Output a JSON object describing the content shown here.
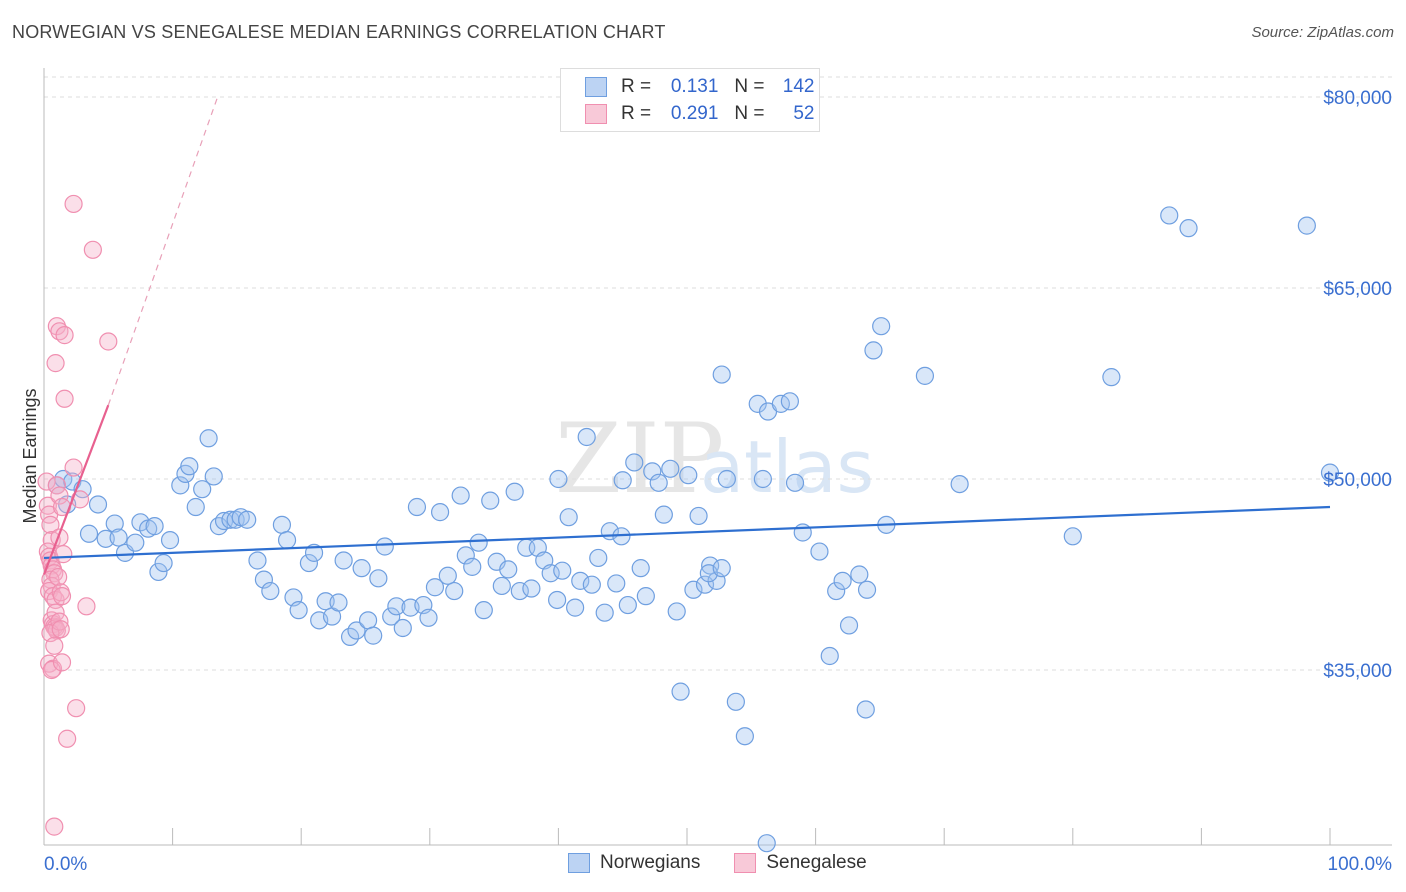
{
  "title": "NORWEGIAN VS SENEGALESE MEDIAN EARNINGS CORRELATION CHART",
  "source": "Source: ZipAtlas.com",
  "legend": {
    "rows": [
      {
        "r_label": "R =",
        "r_value": "0.131",
        "n_label": "N =",
        "n_value": "142"
      },
      {
        "r_label": "R =",
        "r_value": "0.291",
        "n_label": "N =",
        "n_value": "52"
      }
    ]
  },
  "bottom_legend": [
    "Norwegians",
    "Senegalese"
  ],
  "watermark": {
    "zip": "ZIP",
    "atlas": "atlas"
  },
  "colors": {
    "norwegians": "#6f9fe0",
    "senegalese": "#f08fb0",
    "norwegians_line": "#2e6fd0",
    "senegalese_line": "#e8608f",
    "axis_text": "#3a6fd0"
  },
  "chart_data": {
    "type": "scatter",
    "title": "NORWEGIAN VS SENEGALESE MEDIAN EARNINGS CORRELATION CHART",
    "xlabel": "",
    "ylabel": "Median Earnings",
    "xlim": [
      0,
      100
    ],
    "ylim": [
      21000,
      82000
    ],
    "x_tick_labels": [
      "0.0%",
      "100.0%"
    ],
    "y_ticks": [
      35000,
      50000,
      65000,
      80000
    ],
    "y_tick_labels": [
      "$35,000",
      "$50,000",
      "$65,000",
      "$80,000"
    ],
    "series": [
      {
        "name": "Norwegians",
        "R": 0.131,
        "N": 142,
        "trend": {
          "x": [
            0,
            100
          ],
          "y": [
            43800,
            47800
          ]
        },
        "points": [
          [
            1.0,
            49500
          ],
          [
            1.5,
            50000
          ],
          [
            1.8,
            48000
          ],
          [
            2.2,
            49800
          ],
          [
            3.0,
            49200
          ],
          [
            3.5,
            45700
          ],
          [
            4.2,
            48000
          ],
          [
            4.8,
            45300
          ],
          [
            5.5,
            46500
          ],
          [
            5.8,
            45400
          ],
          [
            6.3,
            44200
          ],
          [
            7.1,
            45000
          ],
          [
            7.5,
            46600
          ],
          [
            8.1,
            46100
          ],
          [
            8.6,
            46300
          ],
          [
            8.9,
            42700
          ],
          [
            9.3,
            43400
          ],
          [
            9.8,
            45200
          ],
          [
            10.6,
            49500
          ],
          [
            11.0,
            50400
          ],
          [
            11.3,
            51000
          ],
          [
            11.8,
            47800
          ],
          [
            12.3,
            49200
          ],
          [
            12.8,
            53200
          ],
          [
            13.2,
            50200
          ],
          [
            13.6,
            46300
          ],
          [
            14.0,
            46700
          ],
          [
            14.5,
            46800
          ],
          [
            14.9,
            46800
          ],
          [
            15.3,
            47000
          ],
          [
            15.8,
            46800
          ],
          [
            16.6,
            43600
          ],
          [
            17.1,
            42100
          ],
          [
            17.6,
            41200
          ],
          [
            18.5,
            46400
          ],
          [
            18.9,
            45200
          ],
          [
            19.4,
            40700
          ],
          [
            19.8,
            39700
          ],
          [
            20.6,
            43400
          ],
          [
            21.0,
            44200
          ],
          [
            21.4,
            38900
          ],
          [
            21.9,
            40400
          ],
          [
            22.4,
            39200
          ],
          [
            22.9,
            40300
          ],
          [
            23.3,
            43600
          ],
          [
            23.8,
            37600
          ],
          [
            24.3,
            38100
          ],
          [
            24.7,
            43000
          ],
          [
            25.2,
            38900
          ],
          [
            25.6,
            37700
          ],
          [
            26.0,
            42200
          ],
          [
            26.5,
            44700
          ],
          [
            27.0,
            39200
          ],
          [
            27.4,
            40000
          ],
          [
            27.9,
            38300
          ],
          [
            28.5,
            39900
          ],
          [
            29.0,
            47800
          ],
          [
            29.5,
            40100
          ],
          [
            29.9,
            39100
          ],
          [
            30.4,
            41500
          ],
          [
            30.8,
            47400
          ],
          [
            31.4,
            42400
          ],
          [
            31.9,
            41200
          ],
          [
            32.4,
            48700
          ],
          [
            32.8,
            44000
          ],
          [
            33.3,
            43100
          ],
          [
            33.8,
            45000
          ],
          [
            34.2,
            39700
          ],
          [
            34.7,
            48300
          ],
          [
            35.2,
            43500
          ],
          [
            35.6,
            41600
          ],
          [
            36.1,
            42900
          ],
          [
            36.6,
            49000
          ],
          [
            37.0,
            41200
          ],
          [
            37.5,
            44600
          ],
          [
            37.9,
            41400
          ],
          [
            38.4,
            44600
          ],
          [
            38.9,
            43600
          ],
          [
            39.4,
            42600
          ],
          [
            39.9,
            40500
          ],
          [
            40.3,
            42800
          ],
          [
            40.8,
            47000
          ],
          [
            41.3,
            39900
          ],
          [
            41.7,
            42000
          ],
          [
            42.2,
            53300
          ],
          [
            42.6,
            41700
          ],
          [
            43.1,
            43800
          ],
          [
            43.6,
            39500
          ],
          [
            44.0,
            45900
          ],
          [
            44.5,
            41800
          ],
          [
            44.9,
            45500
          ],
          [
            45.4,
            40100
          ],
          [
            45.9,
            51300
          ],
          [
            46.4,
            43000
          ],
          [
            46.8,
            40800
          ],
          [
            47.3,
            50600
          ],
          [
            47.8,
            49700
          ],
          [
            48.2,
            47200
          ],
          [
            48.7,
            50800
          ],
          [
            49.2,
            39600
          ],
          [
            50.1,
            50300
          ],
          [
            50.5,
            41300
          ],
          [
            50.9,
            47100
          ],
          [
            51.4,
            41700
          ],
          [
            51.8,
            43200
          ],
          [
            52.3,
            42000
          ],
          [
            52.7,
            58200
          ],
          [
            53.1,
            50000
          ],
          [
            53.8,
            32500
          ],
          [
            55.5,
            55900
          ],
          [
            55.9,
            50000
          ],
          [
            56.3,
            55300
          ],
          [
            57.3,
            55900
          ],
          [
            58.0,
            56100
          ],
          [
            58.4,
            49700
          ],
          [
            59.0,
            45800
          ],
          [
            60.3,
            44300
          ],
          [
            61.1,
            36100
          ],
          [
            61.6,
            41200
          ],
          [
            62.1,
            42000
          ],
          [
            62.6,
            38500
          ],
          [
            63.4,
            42500
          ],
          [
            63.9,
            31900
          ],
          [
            64.5,
            60100
          ],
          [
            65.1,
            62000
          ],
          [
            65.5,
            46400
          ],
          [
            68.5,
            58100
          ],
          [
            71.2,
            49600
          ],
          [
            80.0,
            45500
          ],
          [
            83.0,
            58000
          ],
          [
            87.5,
            70700
          ],
          [
            89.0,
            69700
          ],
          [
            98.2,
            69900
          ],
          [
            100.0,
            50500
          ],
          [
            49.5,
            33300
          ],
          [
            51.7,
            42600
          ],
          [
            52.7,
            43000
          ],
          [
            40.0,
            50000
          ],
          [
            45.0,
            49900
          ],
          [
            54.5,
            29800
          ],
          [
            56.2,
            21400
          ],
          [
            64.0,
            41300
          ]
        ]
      },
      {
        "name": "Senegalese",
        "R": 0.291,
        "N": 52,
        "trend_solid": {
          "x": [
            0,
            5
          ],
          "y": [
            42500,
            55800
          ]
        },
        "trend_dashed": {
          "x": [
            5,
            13.5
          ],
          "y": [
            55800,
            80000
          ]
        },
        "points": [
          [
            0.2,
            49800
          ],
          [
            0.3,
            47900
          ],
          [
            0.4,
            47200
          ],
          [
            0.5,
            46400
          ],
          [
            0.6,
            45200
          ],
          [
            0.3,
            44300
          ],
          [
            0.4,
            43900
          ],
          [
            0.5,
            43600
          ],
          [
            0.6,
            43200
          ],
          [
            0.7,
            42900
          ],
          [
            0.8,
            42600
          ],
          [
            0.5,
            42100
          ],
          [
            0.6,
            41600
          ],
          [
            0.4,
            41200
          ],
          [
            0.7,
            40800
          ],
          [
            0.9,
            40500
          ],
          [
            0.6,
            38900
          ],
          [
            0.7,
            38600
          ],
          [
            0.8,
            38400
          ],
          [
            0.9,
            38300
          ],
          [
            1.0,
            38100
          ],
          [
            0.5,
            37900
          ],
          [
            0.8,
            36900
          ],
          [
            0.4,
            35500
          ],
          [
            0.7,
            35100
          ],
          [
            0.6,
            35000
          ],
          [
            1.0,
            49500
          ],
          [
            1.2,
            48700
          ],
          [
            1.4,
            47800
          ],
          [
            1.2,
            45400
          ],
          [
            1.5,
            44100
          ],
          [
            1.1,
            42300
          ],
          [
            1.3,
            41100
          ],
          [
            1.4,
            40800
          ],
          [
            0.9,
            39500
          ],
          [
            1.2,
            38800
          ],
          [
            1.3,
            38200
          ],
          [
            1.4,
            35600
          ],
          [
            1.0,
            62000
          ],
          [
            1.2,
            61600
          ],
          [
            1.6,
            61300
          ],
          [
            0.9,
            59100
          ],
          [
            1.6,
            56300
          ],
          [
            2.3,
            71600
          ],
          [
            3.8,
            68000
          ],
          [
            5.0,
            60800
          ],
          [
            2.3,
            50900
          ],
          [
            2.8,
            48400
          ],
          [
            3.3,
            40000
          ],
          [
            2.5,
            32000
          ],
          [
            1.8,
            29600
          ],
          [
            0.8,
            22700
          ]
        ]
      }
    ]
  }
}
